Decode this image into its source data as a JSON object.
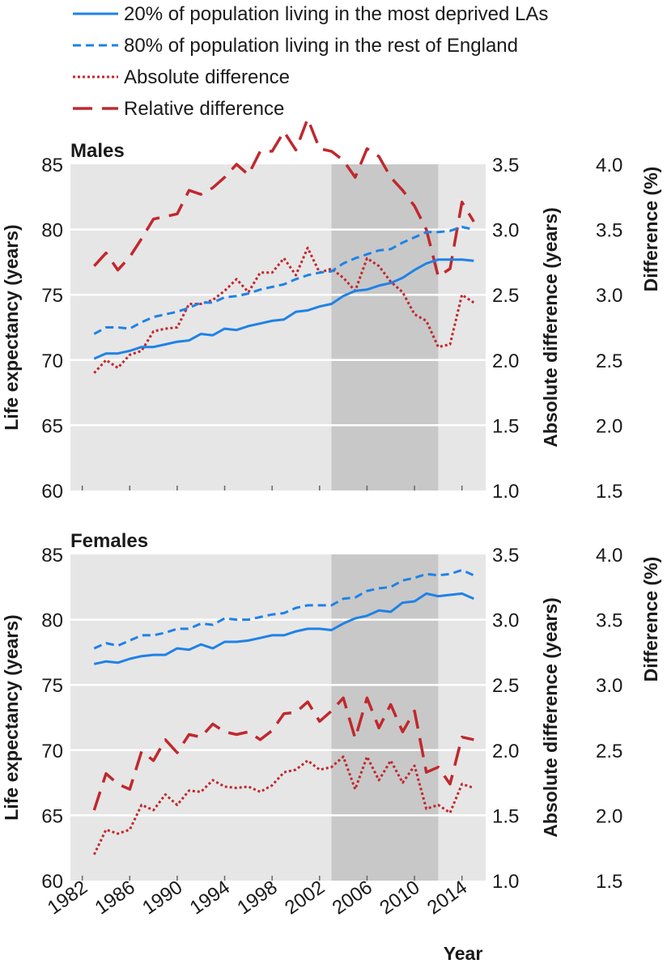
{
  "chart_data": {
    "type": "line",
    "legend": [
      {
        "key": "deprived",
        "label": "20% of population living in the most deprived LAs",
        "color": "#1f82e6",
        "dash": "solid"
      },
      {
        "key": "rest",
        "label": "80% of population living in the rest of England",
        "color": "#1f82e6",
        "dash": "dashed"
      },
      {
        "key": "abs",
        "label": "Absolute difference",
        "color": "#c0282d",
        "dash": "dotted"
      },
      {
        "key": "rel",
        "label": "Relative difference",
        "color": "#c0282d",
        "dash": "longdash"
      }
    ],
    "xlabel": "Year",
    "x_ticks": [
      1982,
      1986,
      1990,
      1994,
      1998,
      2002,
      2006,
      2010,
      2014
    ],
    "x_range": [
      1981,
      2016
    ],
    "shaded_period": [
      2003,
      2012
    ],
    "years": [
      1983,
      1984,
      1985,
      1986,
      1987,
      1988,
      1989,
      1990,
      1991,
      1992,
      1993,
      1994,
      1995,
      1996,
      1997,
      1998,
      1999,
      2000,
      2001,
      2002,
      2003,
      2004,
      2005,
      2006,
      2007,
      2008,
      2009,
      2010,
      2011,
      2012,
      2013,
      2014,
      2015
    ],
    "panels": [
      {
        "title": "Males",
        "ylabel_left": "Life expectancy (years)",
        "ylabel_right1": "Absolute difference (years)",
        "ylabel_right2": "Difference (%)",
        "ylim_left": [
          60,
          85
        ],
        "yticks_left": [
          "85",
          "80",
          "75",
          "70",
          "65",
          "60"
        ],
        "ylim_right1": [
          1.0,
          3.5
        ],
        "yticks_right1": [
          "3.5",
          "3.0",
          "2.5",
          "2.0",
          "1.5",
          "1.0"
        ],
        "ylim_right2": [
          1.5,
          4.0
        ],
        "yticks_right2": [
          "4.0",
          "3.5",
          "3.0",
          "2.5",
          "2.0",
          "1.5"
        ],
        "series": [
          {
            "key": "deprived",
            "values": [
              70.1,
              70.5,
              70.5,
              70.7,
              71.0,
              71.0,
              71.2,
              71.4,
              71.5,
              72.0,
              71.9,
              72.4,
              72.3,
              72.6,
              72.8,
              73.0,
              73.1,
              73.7,
              73.8,
              74.1,
              74.3,
              74.9,
              75.3,
              75.4,
              75.7,
              75.9,
              76.3,
              76.9,
              77.4,
              77.7,
              77.7,
              77.7,
              77.6
            ]
          },
          {
            "key": "rest",
            "values": [
              72.0,
              72.5,
              72.5,
              72.4,
              72.9,
              73.3,
              73.5,
              73.7,
              74.0,
              74.4,
              74.4,
              74.8,
              74.9,
              75.1,
              75.4,
              75.6,
              75.8,
              76.2,
              76.5,
              76.7,
              76.8,
              77.4,
              77.8,
              78.1,
              78.4,
              78.5,
              79.0,
              79.4,
              79.8,
              79.8,
              79.9,
              80.2,
              80.0
            ]
          },
          {
            "key": "abs",
            "values": [
              1.9,
              2.0,
              1.94,
              2.04,
              2.07,
              2.22,
              2.24,
              2.25,
              2.43,
              2.43,
              2.46,
              2.53,
              2.62,
              2.52,
              2.67,
              2.67,
              2.78,
              2.65,
              2.86,
              2.67,
              2.7,
              2.63,
              2.53,
              2.78,
              2.72,
              2.6,
              2.52,
              2.35,
              2.3,
              2.1,
              2.12,
              2.5,
              2.44
            ]
          },
          {
            "key": "rel",
            "values": [
              2.72,
              2.82,
              2.69,
              2.79,
              2.93,
              3.08,
              3.1,
              3.12,
              3.3,
              3.27,
              3.32,
              3.4,
              3.5,
              3.42,
              3.6,
              3.6,
              3.75,
              3.61,
              3.85,
              3.62,
              3.6,
              3.53,
              3.4,
              3.62,
              3.56,
              3.4,
              3.3,
              3.18,
              3.0,
              2.64,
              2.7,
              3.21,
              3.06
            ]
          }
        ]
      },
      {
        "title": "Females",
        "ylabel_left": "Life expectancy (years)",
        "ylabel_right1": "Absolute difference (years)",
        "ylabel_right2": "Difference (%)",
        "ylim_left": [
          60,
          85
        ],
        "yticks_left": [
          "85",
          "80",
          "75",
          "70",
          "65",
          "60"
        ],
        "ylim_right1": [
          1.0,
          3.5
        ],
        "yticks_right1": [
          "3.5",
          "3.0",
          "2.5",
          "2.0",
          "1.5",
          "1.0"
        ],
        "ylim_right2": [
          1.5,
          4.0
        ],
        "yticks_right2": [
          "4.0",
          "3.5",
          "3.0",
          "2.5",
          "2.0",
          "1.5"
        ],
        "series": [
          {
            "key": "deprived",
            "values": [
              76.6,
              76.8,
              76.7,
              77.0,
              77.2,
              77.3,
              77.3,
              77.8,
              77.7,
              78.1,
              77.8,
              78.3,
              78.3,
              78.4,
              78.6,
              78.8,
              78.8,
              79.1,
              79.3,
              79.3,
              79.2,
              79.7,
              80.1,
              80.3,
              80.7,
              80.6,
              81.3,
              81.4,
              82.0,
              81.8,
              81.9,
              82.0,
              81.6
            ]
          },
          {
            "key": "rest",
            "values": [
              77.8,
              78.2,
              78.0,
              78.4,
              78.8,
              78.8,
              79.0,
              79.3,
              79.3,
              79.7,
              79.6,
              80.1,
              80.0,
              80.0,
              80.2,
              80.4,
              80.5,
              80.9,
              81.1,
              81.1,
              81.1,
              81.6,
              81.7,
              82.2,
              82.4,
              82.5,
              83.0,
              83.2,
              83.5,
              83.4,
              83.5,
              83.8,
              83.4
            ]
          },
          {
            "key": "abs",
            "values": [
              1.2,
              1.39,
              1.36,
              1.39,
              1.58,
              1.54,
              1.66,
              1.58,
              1.69,
              1.68,
              1.77,
              1.72,
              1.71,
              1.72,
              1.68,
              1.73,
              1.83,
              1.85,
              1.92,
              1.85,
              1.87,
              1.95,
              1.7,
              1.95,
              1.77,
              1.92,
              1.75,
              1.88,
              1.55,
              1.58,
              1.52,
              1.74,
              1.71
            ]
          },
          {
            "key": "rel",
            "values": [
              1.54,
              1.82,
              1.74,
              1.7,
              1.99,
              1.92,
              2.08,
              1.98,
              2.12,
              2.1,
              2.2,
              2.14,
              2.12,
              2.14,
              2.08,
              2.15,
              2.28,
              2.29,
              2.37,
              2.22,
              2.3,
              2.4,
              2.09,
              2.4,
              2.17,
              2.35,
              2.14,
              2.3,
              1.83,
              1.87,
              1.74,
              2.1,
              2.08
            ]
          }
        ]
      }
    ]
  }
}
